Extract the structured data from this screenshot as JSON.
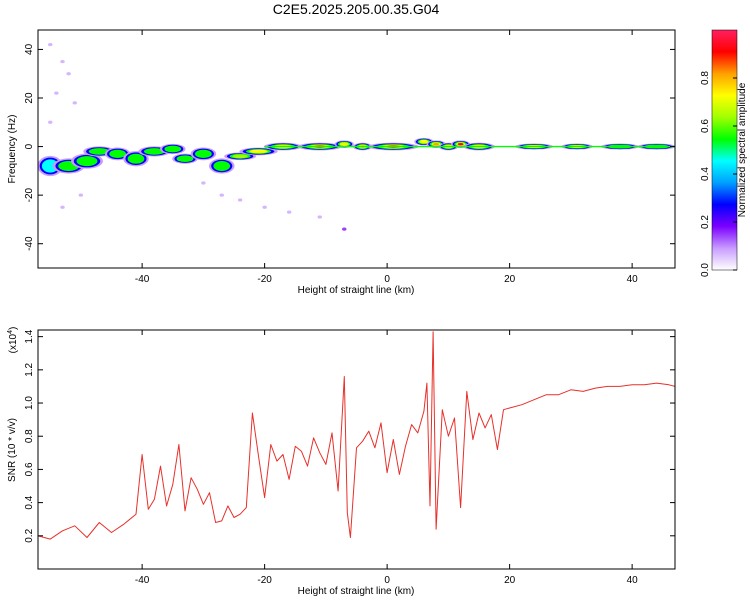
{
  "title": "C2E5.2025.205.00.35.G04",
  "chart_data": [
    {
      "type": "heatmap",
      "xlabel": "Height of straight line (km)",
      "ylabel": "Frequency (Hz)",
      "xlim": [
        -57,
        47
      ],
      "ylim": [
        -50,
        48
      ],
      "x_ticks": [
        -40,
        -20,
        0,
        20,
        40
      ],
      "y_ticks": [
        40,
        20,
        0,
        -20,
        -40
      ],
      "colorbar": {
        "label": "Normalized spectral amplitude",
        "range": [
          0,
          1
        ],
        "ticks": [
          0.0,
          0.2,
          0.4,
          0.6,
          0.8
        ],
        "colormap": [
          "#ffffff",
          "#c89cff",
          "#7b00ff",
          "#0000ff",
          "#00a0ff",
          "#00ffff",
          "#00ff00",
          "#a0ff00",
          "#ffff00",
          "#ffa000",
          "#ff0000",
          "#ff2060"
        ]
      },
      "blobs": [
        {
          "x": -55,
          "y": -8,
          "w": 2.0,
          "h": 4,
          "a": 0.45
        },
        {
          "x": -52,
          "y": -8,
          "w": 2.5,
          "h": 3,
          "a": 0.5
        },
        {
          "x": -49,
          "y": -6,
          "w": 2.5,
          "h": 3,
          "a": 0.5
        },
        {
          "x": -47,
          "y": -2,
          "w": 2.5,
          "h": 2,
          "a": 0.55
        },
        {
          "x": -44,
          "y": -3,
          "w": 2.0,
          "h": 2.5,
          "a": 0.55
        },
        {
          "x": -41,
          "y": -5,
          "w": 2.0,
          "h": 3,
          "a": 0.5
        },
        {
          "x": -38,
          "y": -2,
          "w": 2.5,
          "h": 2,
          "a": 0.55
        },
        {
          "x": -35,
          "y": -1,
          "w": 2.0,
          "h": 2,
          "a": 0.6
        },
        {
          "x": -33,
          "y": -5,
          "w": 2.0,
          "h": 2,
          "a": 0.55
        },
        {
          "x": -30,
          "y": -3,
          "w": 2.0,
          "h": 2.5,
          "a": 0.6
        },
        {
          "x": -27,
          "y": -8,
          "w": 2.0,
          "h": 3,
          "a": 0.5
        },
        {
          "x": -24,
          "y": -4,
          "w": 2.5,
          "h": 1.5,
          "a": 0.65
        },
        {
          "x": -21,
          "y": -2,
          "w": 3.0,
          "h": 1.5,
          "a": 0.7
        },
        {
          "x": -17,
          "y": 0,
          "w": 3.0,
          "h": 1.5,
          "a": 0.8
        },
        {
          "x": -11,
          "y": 0,
          "w": 3.5,
          "h": 1.5,
          "a": 0.98
        },
        {
          "x": -7,
          "y": 1,
          "w": 1.5,
          "h": 1.5,
          "a": 0.75
        },
        {
          "x": -4,
          "y": 0,
          "w": 1.5,
          "h": 1.5,
          "a": 0.85
        },
        {
          "x": 1,
          "y": 0,
          "w": 4.0,
          "h": 1.5,
          "a": 0.98
        },
        {
          "x": 6,
          "y": 2,
          "w": 1.5,
          "h": 1.5,
          "a": 0.8
        },
        {
          "x": 8,
          "y": 1,
          "w": 1.5,
          "h": 1.5,
          "a": 0.85
        },
        {
          "x": 10,
          "y": 0,
          "w": 1.5,
          "h": 1.5,
          "a": 0.8
        },
        {
          "x": 12,
          "y": 1,
          "w": 1.5,
          "h": 1.5,
          "a": 0.9
        },
        {
          "x": 15,
          "y": 0,
          "w": 2.5,
          "h": 1.5,
          "a": 0.75
        },
        {
          "x": 24,
          "y": 0,
          "w": 3.0,
          "h": 1.2,
          "a": 0.72
        },
        {
          "x": 31,
          "y": 0,
          "w": 2.5,
          "h": 1.2,
          "a": 0.82
        },
        {
          "x": 38,
          "y": 0,
          "w": 3.0,
          "h": 1.2,
          "a": 0.6
        },
        {
          "x": 44,
          "y": 0,
          "w": 3.0,
          "h": 1.2,
          "a": 0.5
        }
      ],
      "scatter": [
        {
          "x": -55,
          "y": 42,
          "a": 0.12
        },
        {
          "x": -53,
          "y": 35,
          "a": 0.12
        },
        {
          "x": -52,
          "y": 30,
          "a": 0.12
        },
        {
          "x": -54,
          "y": 22,
          "a": 0.1
        },
        {
          "x": -51,
          "y": 18,
          "a": 0.1
        },
        {
          "x": -55,
          "y": 10,
          "a": 0.12
        },
        {
          "x": -53,
          "y": -25,
          "a": 0.12
        },
        {
          "x": -50,
          "y": -20,
          "a": 0.1
        },
        {
          "x": -27,
          "y": -20,
          "a": 0.12
        },
        {
          "x": -24,
          "y": -22,
          "a": 0.1
        },
        {
          "x": -20,
          "y": -25,
          "a": 0.1
        },
        {
          "x": -16,
          "y": -27,
          "a": 0.1
        },
        {
          "x": -11,
          "y": -29,
          "a": 0.1
        },
        {
          "x": -7,
          "y": -34,
          "a": 0.15
        },
        {
          "x": -30,
          "y": -15,
          "a": 0.1
        }
      ]
    },
    {
      "type": "line",
      "xlabel": "Height of straight line (km)",
      "ylabel": "SNR (10 * v/v)",
      "yscale_label": "(x10",
      "yscale_exp": "4",
      "xlim": [
        -57,
        47
      ],
      "ylim": [
        0,
        14400
      ],
      "x_ticks": [
        -40,
        -20,
        0,
        20,
        40
      ],
      "y_ticks": [
        0.2,
        0.4,
        0.6,
        0.8,
        1.0,
        1.2,
        1.4
      ],
      "color": "#e8302a",
      "series": [
        {
          "name": "",
          "x": [
            -57,
            -55,
            -53,
            -51,
            -49,
            -47,
            -45,
            -43,
            -41,
            -40,
            -39,
            -38,
            -37,
            -36,
            -35,
            -34,
            -33,
            -32,
            -31,
            -30,
            -29,
            -28,
            -27,
            -26,
            -25,
            -24,
            -23,
            -22,
            -21,
            -20,
            -19,
            -18,
            -17,
            -16,
            -15,
            -14,
            -13,
            -12,
            -11,
            -10,
            -9,
            -8,
            -7,
            -6.5,
            -6,
            -5,
            -4,
            -3,
            -2,
            -1,
            0,
            1,
            2,
            3,
            4,
            5,
            6,
            6.5,
            7,
            7.5,
            8,
            9,
            10,
            11,
            12,
            13,
            14,
            15,
            16,
            17,
            18,
            19,
            20,
            22,
            24,
            26,
            28,
            30,
            32,
            34,
            36,
            38,
            40,
            42,
            44,
            46,
            47
          ],
          "y": [
            2000,
            1800,
            2300,
            2600,
            1900,
            2800,
            2200,
            2700,
            3300,
            6900,
            3600,
            4200,
            6200,
            3800,
            5100,
            7500,
            3500,
            5500,
            4800,
            3900,
            4600,
            2800,
            2900,
            3800,
            3100,
            3300,
            3700,
            9400,
            6800,
            4300,
            7500,
            6500,
            6900,
            5400,
            7400,
            7100,
            6200,
            7900,
            7000,
            6300,
            8200,
            4700,
            11600,
            3400,
            1900,
            7300,
            7700,
            8300,
            7300,
            8800,
            5800,
            7800,
            5700,
            7400,
            8700,
            8200,
            9500,
            11200,
            3800,
            14300,
            2400,
            9600,
            8000,
            9100,
            3700,
            10700,
            7800,
            9400,
            8500,
            9300,
            7200,
            9600,
            9700,
            9900,
            10200,
            10500,
            10500,
            10800,
            10700,
            10900,
            11000,
            11000,
            11100,
            11100,
            11200,
            11100,
            11000
          ]
        }
      ]
    }
  ]
}
